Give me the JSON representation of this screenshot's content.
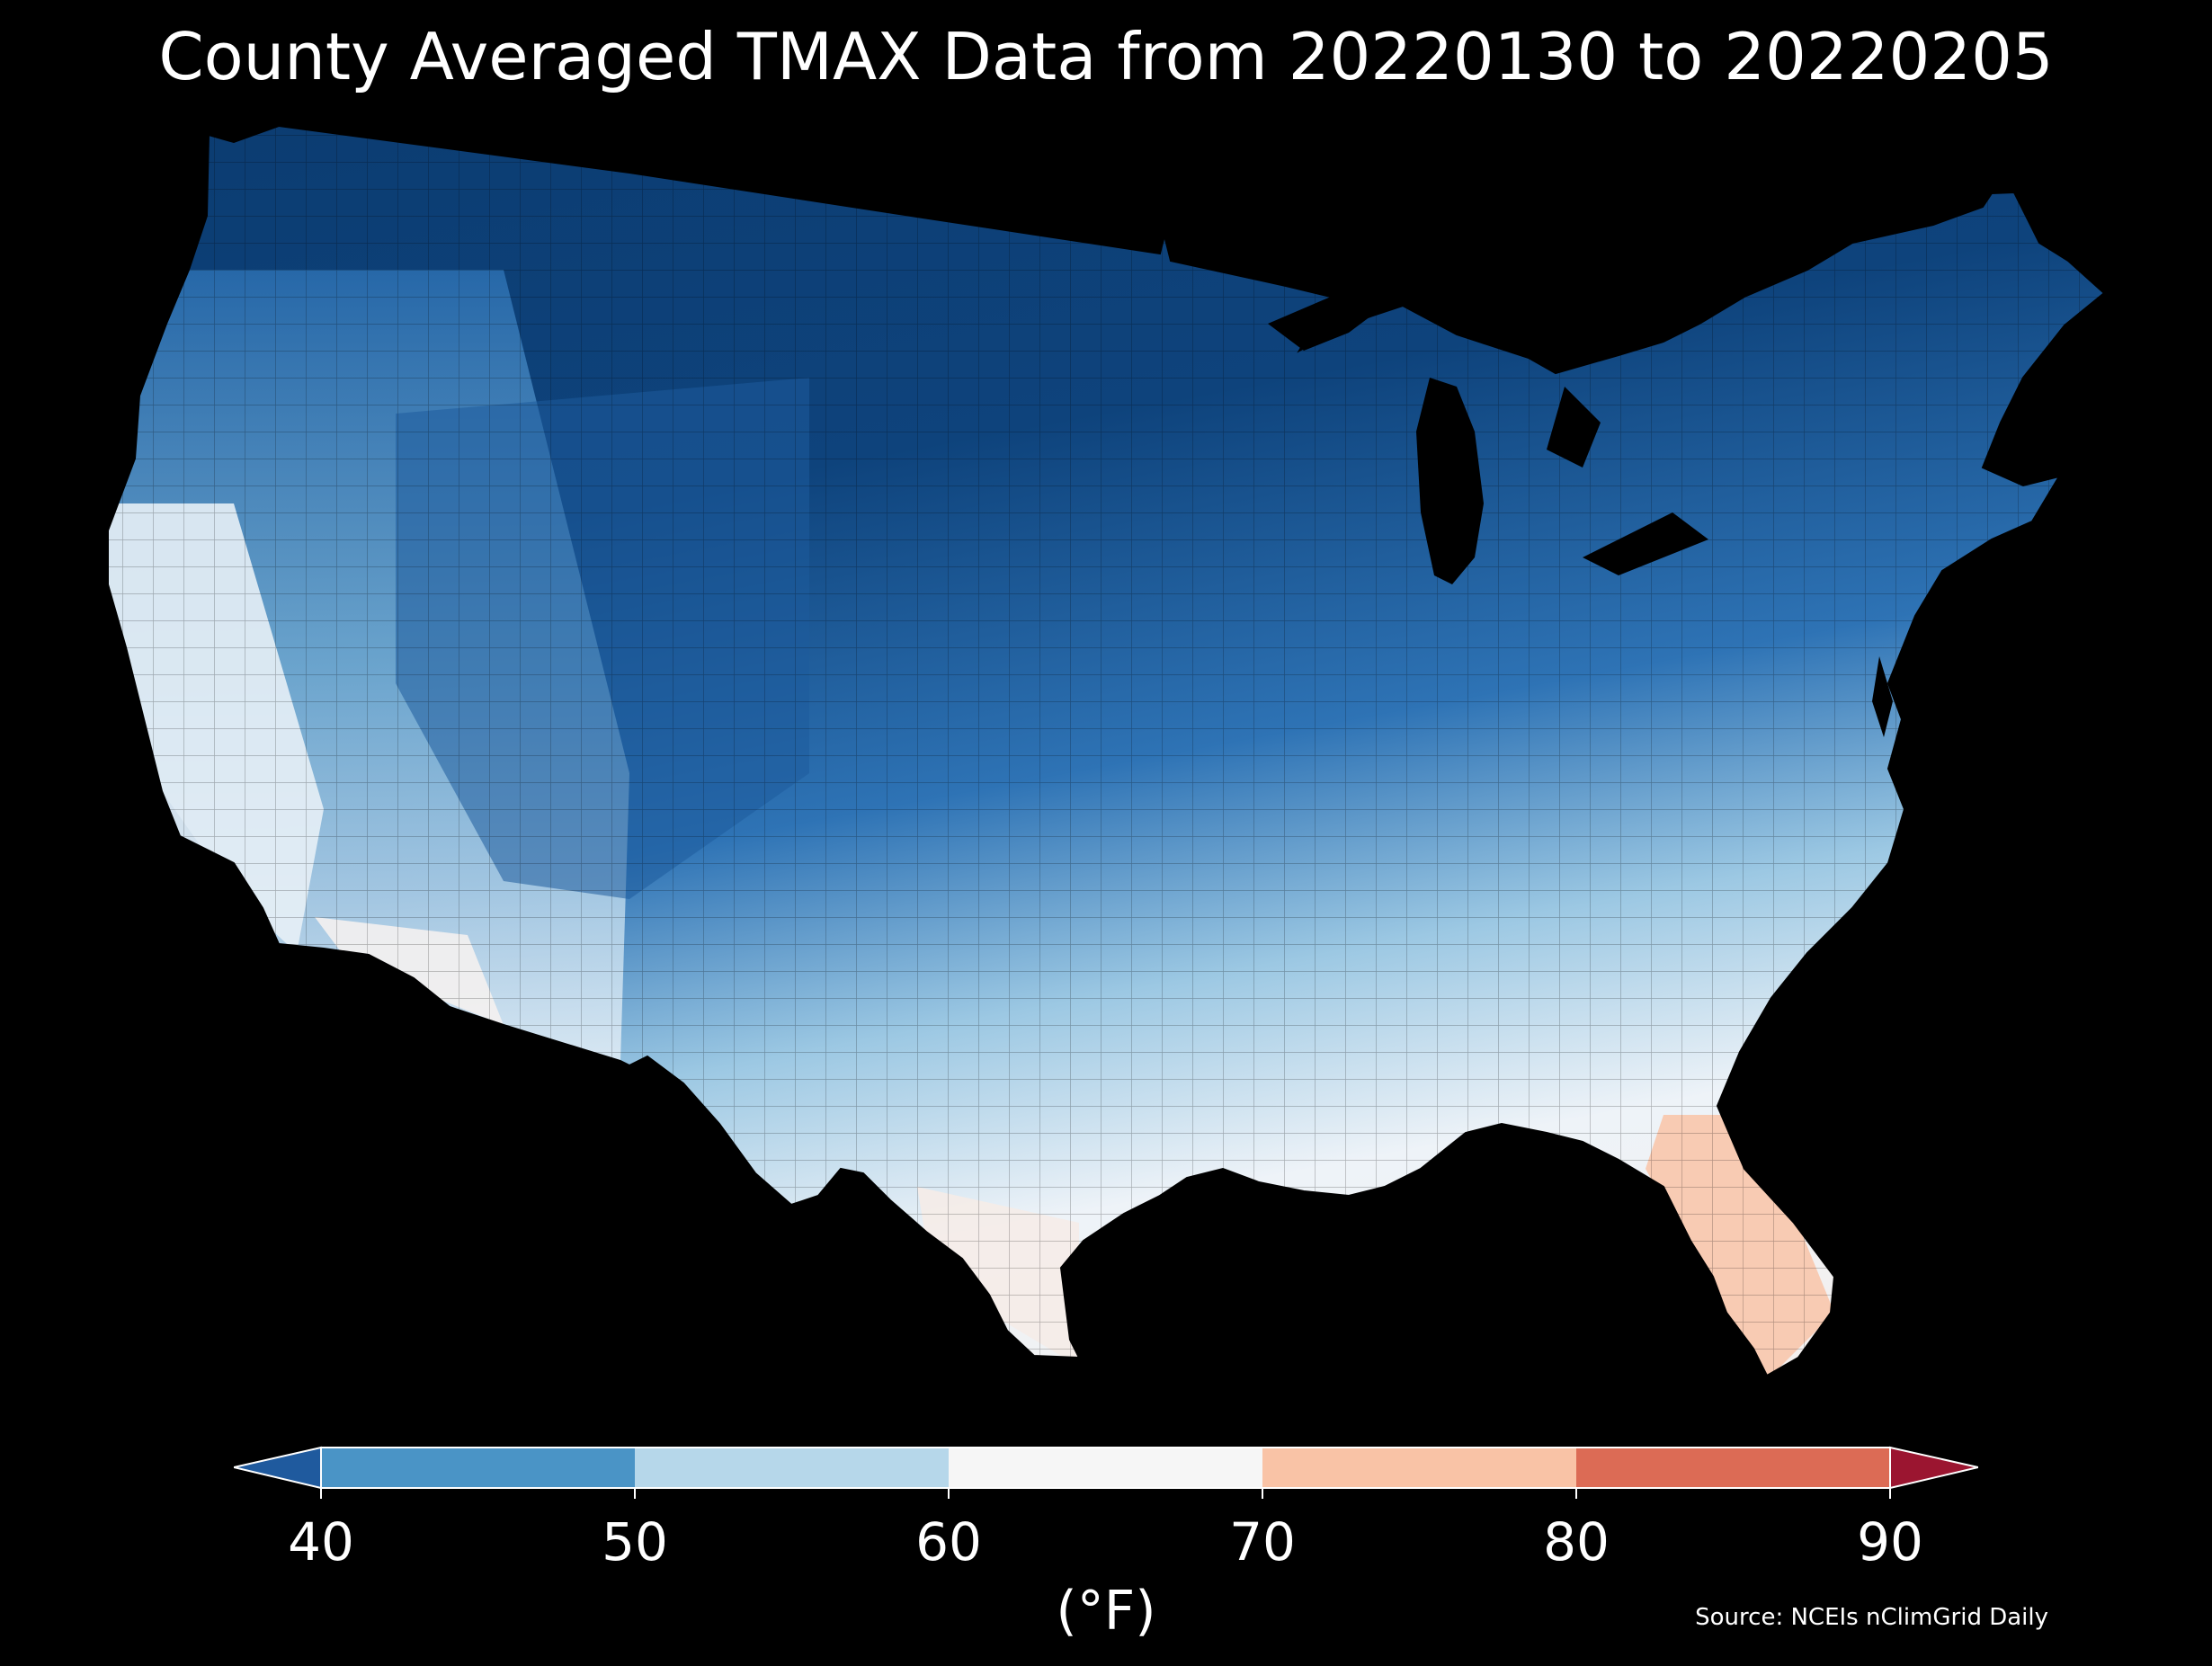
{
  "title": "County Averaged TMAX Data from 20220130 to 20220205",
  "colorbar": {
    "ticks": [
      "40",
      "50",
      "60",
      "70",
      "80",
      "90"
    ],
    "unit_label": "(°F)",
    "colors": {
      "under": "#1f5a9e",
      "bin_40_50": "#4a94c6",
      "bin_50_60": "#b6d7ea",
      "bin_60_70": "#f6f6f6",
      "bin_70_80": "#f9c3a6",
      "bin_80_90": "#dc6b55",
      "over": "#9b1530"
    }
  },
  "map_colors": {
    "deep_cold": "#0b3a6e",
    "cold": "#1e5b9c",
    "cool": "#3f85c2",
    "mild": "#86bbdc",
    "neutral": "#f2f5f8",
    "warm": "#f8cbb3"
  },
  "source": "Source: NCEIs nClimGrid Daily"
}
